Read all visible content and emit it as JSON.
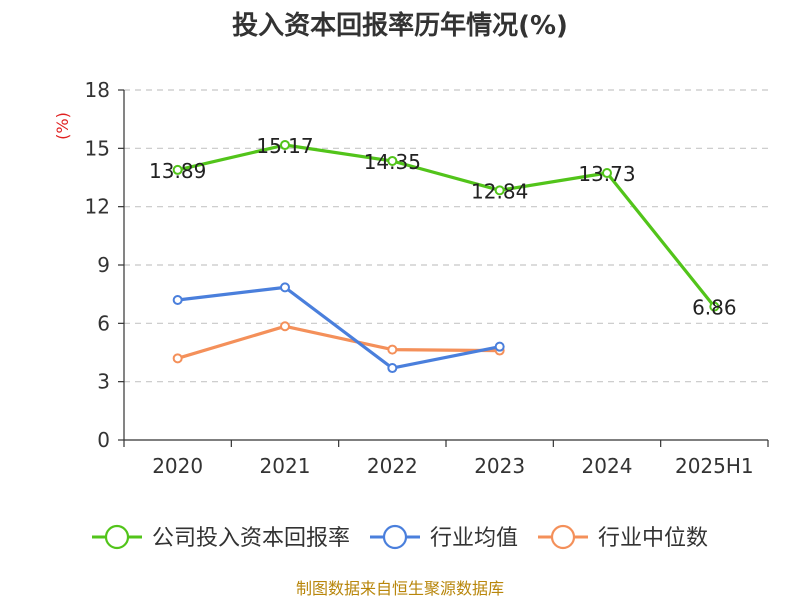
{
  "chart_data": {
    "type": "line",
    "title": "投入资本回报率历年情况(%)",
    "ylabel": "(%)",
    "categories": [
      "2020",
      "2021",
      "2022",
      "2023",
      "2024",
      "2025H1"
    ],
    "ylim": [
      0,
      18
    ],
    "yticks": [
      0,
      3,
      6,
      9,
      12,
      15,
      18
    ],
    "grid": true,
    "legend_position": "bottom",
    "series": [
      {
        "name": "公司投入资本回报率",
        "color": "#52c41a",
        "values": [
          13.89,
          15.17,
          14.35,
          12.84,
          13.73,
          6.86
        ],
        "show_labels": true
      },
      {
        "name": "行业均值",
        "color": "#4a7fdc",
        "values": [
          7.2,
          7.85,
          3.7,
          4.8,
          null,
          null
        ],
        "show_labels": false
      },
      {
        "name": "行业中位数",
        "color": "#f4905a",
        "values": [
          4.2,
          5.85,
          4.65,
          4.6,
          null,
          null
        ],
        "show_labels": false
      }
    ]
  },
  "source": "制图数据来自恒生聚源数据库"
}
